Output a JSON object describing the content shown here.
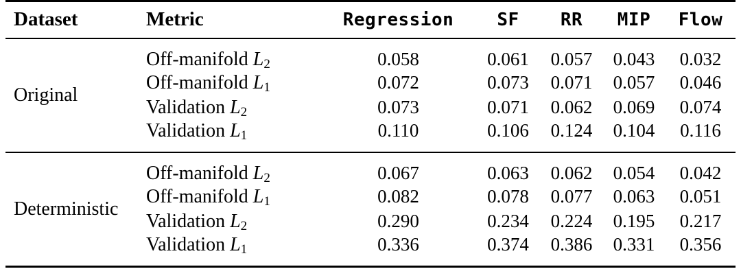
{
  "table": {
    "colors": {
      "text": "#000000",
      "background": "#ffffff",
      "rule": "#000000"
    },
    "columns": {
      "dataset": "Dataset",
      "metric": "Metric",
      "methods": [
        "Regression",
        "SF",
        "RR",
        "MIP",
        "Flow"
      ]
    },
    "groups": [
      {
        "dataset": "Original",
        "rows": [
          {
            "metric_name": "Off-manifold",
            "norm": "L",
            "sub": "2",
            "values": [
              "0.058",
              "0.061",
              "0.057",
              "0.043",
              "0.032"
            ]
          },
          {
            "metric_name": "Off-manifold",
            "norm": "L",
            "sub": "1",
            "values": [
              "0.072",
              "0.073",
              "0.071",
              "0.057",
              "0.046"
            ]
          },
          {
            "metric_name": "Validation",
            "norm": "L",
            "sub": "2",
            "values": [
              "0.073",
              "0.071",
              "0.062",
              "0.069",
              "0.074"
            ]
          },
          {
            "metric_name": "Validation",
            "norm": "L",
            "sub": "1",
            "values": [
              "0.110",
              "0.106",
              "0.124",
              "0.104",
              "0.116"
            ]
          }
        ]
      },
      {
        "dataset": "Deterministic",
        "rows": [
          {
            "metric_name": "Off-manifold",
            "norm": "L",
            "sub": "2",
            "values": [
              "0.067",
              "0.063",
              "0.062",
              "0.054",
              "0.042"
            ]
          },
          {
            "metric_name": "Off-manifold",
            "norm": "L",
            "sub": "1",
            "values": [
              "0.082",
              "0.078",
              "0.077",
              "0.063",
              "0.051"
            ]
          },
          {
            "metric_name": "Validation",
            "norm": "L",
            "sub": "2",
            "values": [
              "0.290",
              "0.234",
              "0.224",
              "0.195",
              "0.217"
            ]
          },
          {
            "metric_name": "Validation",
            "norm": "L",
            "sub": "1",
            "values": [
              "0.336",
              "0.374",
              "0.386",
              "0.331",
              "0.356"
            ]
          }
        ]
      }
    ]
  }
}
